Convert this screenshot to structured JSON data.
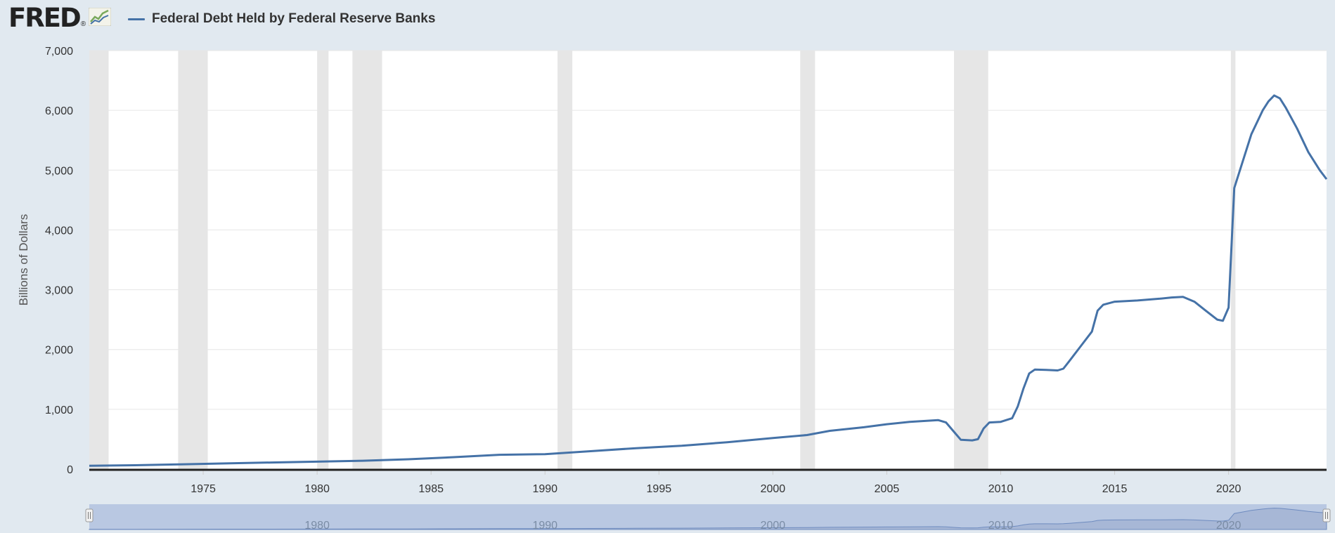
{
  "header": {
    "logo_text": "FRED",
    "logo_icon": "line-graph-icon",
    "legend_label": "Federal Debt Held by Federal Reserve Banks"
  },
  "colors": {
    "series": "#4572a7",
    "recession": "#e6e6e6",
    "navigator_fill": "#a7b7d6",
    "background": "#e1e9f0"
  },
  "chart_data": {
    "type": "line",
    "ylabel": "Billions of Dollars",
    "xlim": [
      1970.0,
      2024.3
    ],
    "ylim": [
      0,
      7000
    ],
    "y_ticks": [
      0,
      1000,
      2000,
      3000,
      4000,
      5000,
      6000,
      7000
    ],
    "y_tick_labels": [
      "0",
      "1,000",
      "2,000",
      "3,000",
      "4,000",
      "5,000",
      "6,000",
      "7,000"
    ],
    "x_ticks": [
      1975,
      1980,
      1985,
      1990,
      1995,
      2000,
      2005,
      2010,
      2015,
      2020
    ],
    "x_tick_labels": [
      "1975",
      "1980",
      "1985",
      "1990",
      "1995",
      "2000",
      "2005",
      "2010",
      "2015",
      "2020"
    ],
    "grid": true,
    "recessions": [
      [
        1970.0,
        1970.85
      ],
      [
        1973.9,
        1975.2
      ],
      [
        1980.0,
        1980.5
      ],
      [
        1981.55,
        1982.85
      ],
      [
        1990.55,
        1991.2
      ],
      [
        2001.2,
        2001.85
      ],
      [
        2007.95,
        2009.45
      ],
      [
        2020.1,
        2020.3
      ]
    ],
    "series": [
      {
        "name": "Federal Debt Held by Federal Reserve Banks",
        "x": [
          1970.0,
          1972,
          1974,
          1976,
          1978,
          1980,
          1982,
          1984,
          1986,
          1988,
          1990,
          1992,
          1994,
          1996,
          1998,
          2000,
          2001.5,
          2002.5,
          2004,
          2005,
          2006,
          2007.25,
          2007.6,
          2008.0,
          2008.25,
          2008.75,
          2009.0,
          2009.25,
          2009.5,
          2010.0,
          2010.5,
          2010.75,
          2011.0,
          2011.25,
          2011.5,
          2012.0,
          2012.5,
          2012.75,
          2013.0,
          2013.5,
          2014.0,
          2014.25,
          2014.5,
          2015.0,
          2016.0,
          2017.0,
          2017.5,
          2018.0,
          2018.5,
          2019.0,
          2019.5,
          2019.75,
          2020.0,
          2020.25,
          2021.0,
          2021.5,
          2021.75,
          2022.0,
          2022.25,
          2022.5,
          2023.0,
          2023.5,
          2024.0,
          2024.3
        ],
        "values": [
          55,
          65,
          80,
          95,
          110,
          125,
          140,
          165,
          200,
          240,
          250,
          300,
          350,
          390,
          450,
          520,
          570,
          640,
          700,
          750,
          790,
          820,
          780,
          600,
          490,
          480,
          500,
          680,
          780,
          790,
          850,
          1050,
          1350,
          1600,
          1665,
          1660,
          1650,
          1680,
          1800,
          2050,
          2300,
          2650,
          2750,
          2800,
          2820,
          2850,
          2870,
          2880,
          2800,
          2650,
          2500,
          2480,
          2700,
          4700,
          5600,
          6000,
          6150,
          6250,
          6200,
          6050,
          5700,
          5300,
          5000,
          4850
        ]
      }
    ],
    "navigator": {
      "x_tick_labels": [
        "1980",
        "1990",
        "2000",
        "2010",
        "2020"
      ],
      "x_ticks": [
        1980,
        1990,
        2000,
        2010,
        2020
      ]
    }
  }
}
